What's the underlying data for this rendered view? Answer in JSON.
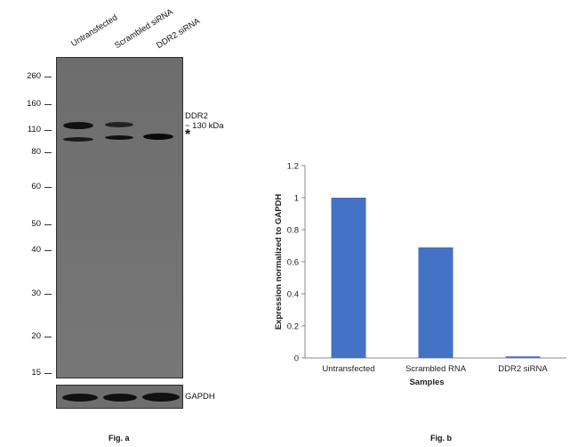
{
  "blot": {
    "lanes": [
      "Untransfected",
      "Scrambled siRNA",
      "DDR2 siRNA"
    ],
    "markers": [
      "260",
      "160",
      "110",
      "80",
      "60",
      "50",
      "40",
      "30",
      "20",
      "15"
    ],
    "target_label_line1": "DDR2",
    "target_label_line2": "~ 130 kDa",
    "asterisk": "*",
    "loading_control": "GAPDH"
  },
  "fig_a_label": "Fig. a",
  "fig_b_label": "Fig. b",
  "chart_data": {
    "type": "bar",
    "categories": [
      "Untransfected",
      "Scrambled RNA",
      "DDR2 siRNA"
    ],
    "values": [
      1.0,
      0.69,
      0.01
    ],
    "xlabel": "Samples",
    "ylabel": "Expression normalized to GAPDH",
    "ylim": [
      0,
      1.2
    ],
    "yticks": [
      "0",
      "0.2",
      "0.4",
      "0.6",
      "0.8",
      "1",
      "1.2"
    ],
    "bar_color": "#4472c4",
    "grid": false
  }
}
